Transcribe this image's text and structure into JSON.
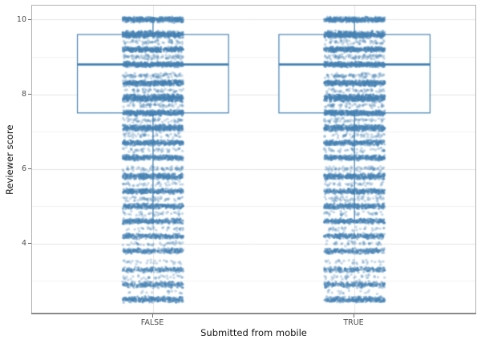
{
  "chart_data": {
    "type": "boxplot",
    "overlay": "jittered strip points",
    "title": "",
    "xlabel": "Submitted from mobile",
    "ylabel": "Reviewer score",
    "categories": [
      "FALSE",
      "TRUE"
    ],
    "x_tick_labels": [
      "FALSE",
      "TRUE"
    ],
    "y_tick_labels": [
      "10",
      "8",
      "6",
      "4"
    ],
    "y_major_ticks": [
      10,
      8,
      6,
      4
    ],
    "y_minor_gridlines": [
      9,
      7,
      5,
      3
    ],
    "ylim": [
      2.125,
      10.375
    ],
    "grid": "major and minor horizontal, major vertical at each category",
    "legend": "none",
    "boxplots": [
      {
        "category": "FALSE",
        "whisker_low": 4.6,
        "q1": 7.5,
        "median": 8.8,
        "q3": 9.6,
        "whisker_high": 10.0,
        "box_width_units": 0.75,
        "outliers_hidden": true
      },
      {
        "category": "TRUE",
        "whisker_low": 4.6,
        "q1": 7.5,
        "median": 8.8,
        "q3": 9.6,
        "whisker_high": 10.0,
        "box_width_units": 0.75,
        "outliers_hidden": true
      }
    ],
    "score_values": [
      10,
      9.6,
      9.2,
      8.8,
      8.3,
      7.9,
      7.5,
      7.1,
      6.7,
      6.3,
      5.8,
      5.4,
      5.0,
      4.6,
      4.2,
      3.8,
      3.3,
      2.9,
      2.5
    ],
    "major_bands": [
      {
        "score": 10.0,
        "count": 430,
        "spread": 3.8
      },
      {
        "score": 9.6,
        "count": 540,
        "spread": 5.0
      },
      {
        "score": 9.2,
        "count": 390,
        "spread": 3.8
      },
      {
        "score": 8.8,
        "count": 410,
        "spread": 3.8
      },
      {
        "score": 8.3,
        "count": 410,
        "spread": 4.0
      },
      {
        "score": 7.9,
        "count": 540,
        "spread": 5.2
      },
      {
        "score": 7.5,
        "count": 430,
        "spread": 4.0
      },
      {
        "score": 7.1,
        "count": 430,
        "spread": 4.6
      },
      {
        "score": 6.7,
        "count": 340,
        "spread": 3.8
      },
      {
        "score": 6.3,
        "count": 340,
        "spread": 3.8
      },
      {
        "score": 5.8,
        "count": 370,
        "spread": 4.2
      },
      {
        "score": 5.4,
        "count": 310,
        "spread": 3.8
      },
      {
        "score": 5.0,
        "count": 310,
        "spread": 4.0
      },
      {
        "score": 4.6,
        "count": 290,
        "spread": 3.8
      },
      {
        "score": 4.2,
        "count": 260,
        "spread": 3.8
      },
      {
        "score": 3.8,
        "count": 240,
        "spread": 3.8
      },
      {
        "score": 3.3,
        "count": 190,
        "spread": 3.8
      },
      {
        "score": 2.9,
        "count": 230,
        "spread": 4.6
      },
      {
        "score": 2.5,
        "count": 300,
        "spread": 4.2
      }
    ],
    "minor_bands": [
      {
        "score": 9.4,
        "count": 60,
        "spread": 3.6
      },
      {
        "score": 9.0,
        "count": 90,
        "spread": 3.6
      },
      {
        "score": 8.5,
        "count": 90,
        "spread": 3.8
      },
      {
        "score": 8.1,
        "count": 50,
        "spread": 3.2
      },
      {
        "score": 7.7,
        "count": 60,
        "spread": 3.6
      },
      {
        "score": 7.3,
        "count": 60,
        "spread": 3.6
      },
      {
        "score": 6.9,
        "count": 50,
        "spread": 3.6
      },
      {
        "score": 6.5,
        "count": 45,
        "spread": 3.6
      },
      {
        "score": 6.0,
        "count": 70,
        "spread": 3.8
      },
      {
        "score": 5.6,
        "count": 40,
        "spread": 3.4
      },
      {
        "score": 5.2,
        "count": 60,
        "spread": 4.0
      },
      {
        "score": 4.8,
        "count": 40,
        "spread": 3.6
      },
      {
        "score": 4.4,
        "count": 35,
        "spread": 3.6
      },
      {
        "score": 4.0,
        "count": 40,
        "spread": 3.6
      },
      {
        "score": 3.5,
        "count": 30,
        "spread": 3.4
      },
      {
        "score": 3.1,
        "count": 35,
        "spread": 3.8
      },
      {
        "score": 2.7,
        "count": 15,
        "spread": 3.0
      }
    ],
    "jitter": {
      "half_width_units": 0.15
    },
    "point_radius": 1.6,
    "seeds": [
      20240101,
      987654
    ],
    "colors": {
      "point": "#4682B4",
      "point_alpha": 0.4,
      "minor_point_alpha": 0.28,
      "box_stroke": "#4682B4",
      "box_fill": "#ffffff",
      "grid_major": "#e4e4e4",
      "grid_minor": "#f0f0f0"
    }
  }
}
